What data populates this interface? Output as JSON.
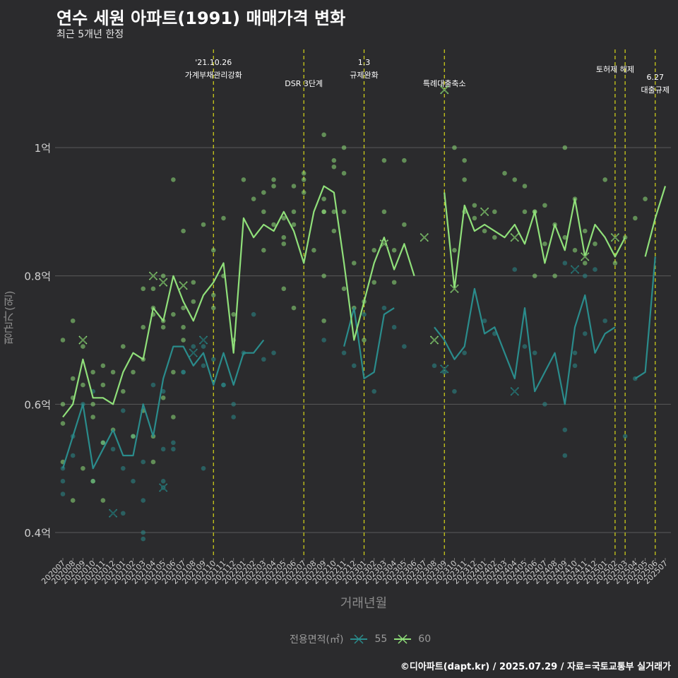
{
  "title": "연수 세원 아파트(1991) 매매가격 변화",
  "subtitle": "최근 5개년 한정",
  "footer": "©디아파트(dapt.kr) / 2025.07.29 / 자료=국토교통부 실거래가",
  "colors": {
    "background": "#2b2b2d",
    "series55": "#2a8c8c",
    "series60": "#90e07a",
    "vline": "#d8d818",
    "grid": "#5a5a5a"
  },
  "chart_data": {
    "type": "line",
    "xlabel": "거래년월",
    "ylabel": "평균가(원)",
    "legend_title": "전용면적(㎡)",
    "legend_position": "bottom",
    "grid": true,
    "ylim": [
      0.36,
      1.14
    ],
    "yticks": [
      {
        "value": 0.4,
        "label": "0.4억"
      },
      {
        "value": 0.6,
        "label": "0.6억"
      },
      {
        "value": 0.8,
        "label": "0.8억"
      },
      {
        "value": 1.0,
        "label": "1억"
      }
    ],
    "categories": [
      "202007",
      "202008",
      "202009",
      "202010",
      "202011",
      "202012",
      "202101",
      "202102",
      "202103",
      "202104",
      "202105",
      "202106",
      "202107",
      "202108",
      "202109",
      "202110",
      "202111",
      "202112",
      "202201",
      "202202",
      "202203",
      "202204",
      "202205",
      "202206",
      "202207",
      "202208",
      "202209",
      "202210",
      "202211",
      "202212",
      "202301",
      "202302",
      "202303",
      "202304",
      "202305",
      "202306",
      "202307",
      "202308",
      "202309",
      "202310",
      "202311",
      "202312",
      "202401",
      "202402",
      "202403",
      "202404",
      "202405",
      "202406",
      "202407",
      "202408",
      "202409",
      "202410",
      "202411",
      "202412",
      "202501",
      "202502",
      "202503",
      "202504",
      "202505",
      "202506",
      "202507"
    ],
    "series": [
      {
        "name": "55",
        "color": "#2a8c8c",
        "values": [
          0.5,
          0.55,
          0.6,
          0.5,
          0.53,
          0.56,
          0.52,
          0.52,
          0.6,
          0.55,
          0.64,
          0.69,
          0.69,
          0.66,
          0.68,
          0.63,
          0.68,
          0.63,
          0.68,
          0.68,
          0.7,
          null,
          null,
          null,
          null,
          null,
          0.68,
          null,
          0.69,
          0.75,
          0.64,
          0.65,
          0.74,
          0.75,
          null,
          null,
          null,
          0.72,
          0.7,
          0.67,
          0.69,
          0.78,
          0.71,
          0.72,
          0.68,
          0.64,
          0.75,
          0.62,
          0.65,
          0.68,
          0.6,
          0.72,
          0.77,
          0.68,
          0.71,
          0.72,
          null,
          0.64,
          0.65,
          0.83,
          null
        ],
        "trades": [
          0.5,
          0.46,
          0.48,
          0.52,
          0.55,
          0.6,
          0.62,
          0.48,
          0.54,
          0.43,
          0.53,
          0.59,
          0.48,
          0.55,
          0.51,
          0.5,
          0.45,
          0.4,
          0.39,
          0.63,
          0.53,
          0.62,
          0.48,
          0.47,
          0.54,
          0.65,
          0.65,
          0.69,
          0.53,
          0.69,
          0.66,
          0.67,
          0.5,
          0.63,
          0.58,
          0.6,
          0.63,
          0.68,
          0.74,
          0.67,
          0.68,
          0.7,
          0.68,
          0.66,
          0.74,
          0.62,
          0.75,
          0.72,
          0.69,
          0.66,
          0.65,
          0.62,
          0.68,
          0.73,
          0.71,
          0.81,
          0.69,
          0.68,
          0.6,
          0.56,
          0.52,
          0.66,
          0.8,
          0.81,
          0.82,
          0.68,
          0.71,
          0.73,
          0.55,
          0.64
        ],
        "trade_months": [
          0,
          0,
          0,
          1,
          1,
          2,
          3,
          3,
          4,
          6,
          5,
          6,
          7,
          7,
          8,
          6,
          8,
          8,
          8,
          9,
          10,
          10,
          10,
          10,
          11,
          12,
          12,
          13,
          11,
          14,
          14,
          15,
          14,
          16,
          17,
          17,
          16,
          18,
          19,
          20,
          21,
          26,
          28,
          29,
          30,
          31,
          32,
          33,
          34,
          37,
          38,
          39,
          40,
          42,
          43,
          45,
          46,
          47,
          48,
          50,
          50,
          51,
          52,
          53,
          50,
          51,
          52,
          54,
          56,
          57
        ],
        "cross_marks": [
          {
            "month": 5,
            "value": 0.43
          },
          {
            "month": 10,
            "value": 0.47
          },
          {
            "month": 13,
            "value": 0.68
          },
          {
            "month": 14,
            "value": 0.7
          },
          {
            "month": 38,
            "value": 0.655
          },
          {
            "month": 45,
            "value": 0.62
          },
          {
            "month": 51,
            "value": 0.81
          }
        ]
      },
      {
        "name": "60",
        "color": "#90e07a",
        "values": [
          0.58,
          0.6,
          0.67,
          0.61,
          0.61,
          0.6,
          0.65,
          0.68,
          0.67,
          0.75,
          0.73,
          0.8,
          0.76,
          0.73,
          0.77,
          0.79,
          0.82,
          0.68,
          0.89,
          0.86,
          0.88,
          0.87,
          0.9,
          0.87,
          0.82,
          0.9,
          0.94,
          0.93,
          0.82,
          0.7,
          0.76,
          0.82,
          0.86,
          0.81,
          0.85,
          0.8,
          null,
          null,
          0.93,
          0.78,
          0.91,
          0.87,
          0.88,
          0.87,
          0.86,
          0.88,
          0.85,
          0.9,
          0.82,
          0.88,
          0.84,
          0.92,
          0.83,
          0.88,
          0.86,
          0.83,
          0.86,
          null,
          0.83,
          0.89,
          0.94
        ],
        "trades": [
          0.7,
          0.57,
          0.6,
          0.51,
          0.64,
          0.61,
          0.73,
          0.45,
          0.5,
          0.69,
          0.63,
          0.6,
          0.65,
          0.58,
          0.63,
          0.66,
          0.54,
          0.48,
          0.45,
          0.56,
          0.65,
          0.62,
          0.69,
          0.65,
          0.55,
          0.59,
          0.67,
          0.72,
          0.78,
          0.55,
          0.51,
          0.74,
          0.75,
          0.78,
          0.8,
          0.73,
          0.72,
          0.61,
          0.65,
          0.58,
          0.74,
          0.95,
          0.87,
          0.75,
          0.72,
          0.7,
          0.76,
          0.79,
          0.88,
          0.77,
          0.84,
          0.75,
          0.89,
          0.8,
          0.7,
          0.74,
          0.95,
          0.92,
          0.93,
          0.9,
          0.84,
          0.88,
          0.94,
          0.95,
          0.89,
          0.85,
          0.78,
          0.86,
          0.88,
          0.94,
          0.9,
          0.75,
          0.93,
          0.95,
          0.96,
          0.84,
          0.92,
          0.8,
          0.9,
          0.9,
          0.73,
          1.02,
          0.98,
          0.9,
          0.87,
          0.97,
          0.96,
          0.9,
          0.78,
          1.0,
          0.75,
          0.82,
          0.7,
          0.76,
          0.79,
          0.84,
          0.9,
          0.98,
          0.84,
          0.79,
          0.88,
          0.98,
          1.0,
          0.84,
          0.95,
          0.9,
          0.98,
          0.89,
          0.91,
          0.87,
          0.86,
          0.9,
          0.96,
          0.95,
          0.94,
          0.9,
          0.9,
          0.8,
          0.9,
          0.91,
          0.85,
          0.8,
          0.88,
          0.86,
          1.0,
          0.92,
          0.84,
          0.87,
          0.82,
          0.85,
          0.95,
          0.82,
          0.86,
          0.89,
          0.92
        ],
        "trade_months": [
          0,
          0,
          0,
          0,
          1,
          1,
          1,
          1,
          2,
          2,
          2,
          3,
          3,
          3,
          4,
          4,
          4,
          3,
          4,
          5,
          5,
          6,
          6,
          7,
          7,
          8,
          8,
          8,
          8,
          9,
          9,
          9,
          9,
          9,
          10,
          10,
          10,
          10,
          11,
          11,
          11,
          11,
          12,
          12,
          12,
          12,
          13,
          13,
          14,
          15,
          15,
          15,
          16,
          16,
          17,
          17,
          18,
          19,
          20,
          20,
          20,
          21,
          21,
          21,
          22,
          22,
          22,
          22,
          23,
          23,
          23,
          23,
          24,
          24,
          24,
          25,
          26,
          26,
          26,
          26,
          26,
          26,
          27,
          27,
          27,
          27,
          28,
          28,
          28,
          28,
          29,
          29,
          30,
          30,
          31,
          31,
          32,
          32,
          33,
          33,
          34,
          34,
          39,
          39,
          40,
          40,
          40,
          41,
          41,
          42,
          43,
          43,
          44,
          45,
          46,
          46,
          47,
          47,
          47,
          48,
          48,
          49,
          49,
          50,
          50,
          51,
          51,
          52,
          52,
          53,
          54,
          55,
          56,
          57,
          58
        ],
        "cross_marks": [
          {
            "month": 2,
            "value": 0.7
          },
          {
            "month": 9,
            "value": 0.8
          },
          {
            "month": 10,
            "value": 0.79
          },
          {
            "month": 12,
            "value": 0.785
          },
          {
            "month": 32,
            "value": 0.85
          },
          {
            "month": 36,
            "value": 0.86
          },
          {
            "month": 37,
            "value": 0.7
          },
          {
            "month": 38,
            "value": 1.09
          },
          {
            "month": 39,
            "value": 0.78
          },
          {
            "month": 42,
            "value": 0.9
          },
          {
            "month": 45,
            "value": 0.86
          },
          {
            "month": 52,
            "value": 0.83
          },
          {
            "month": 55,
            "value": 0.86
          }
        ]
      }
    ],
    "events": [
      {
        "month": 15,
        "lines": [
          "'21.10.26",
          "가계부채관리강화"
        ],
        "tier": 0
      },
      {
        "month": 24,
        "lines": [
          "DSR 3단계"
        ],
        "tier": 2
      },
      {
        "month": 30,
        "lines": [
          "1.3",
          "규제완화"
        ],
        "tier": 0
      },
      {
        "month": 38,
        "lines": [
          "특례대출축소"
        ],
        "tier": 2
      },
      {
        "month": 55,
        "lines": [
          "토허제 해제"
        ],
        "tier": 1
      },
      {
        "month": 56,
        "lines": [],
        "tier": 1
      },
      {
        "month": 59,
        "lines": [
          "6.27",
          "대출규제"
        ],
        "tier": 3
      }
    ]
  }
}
